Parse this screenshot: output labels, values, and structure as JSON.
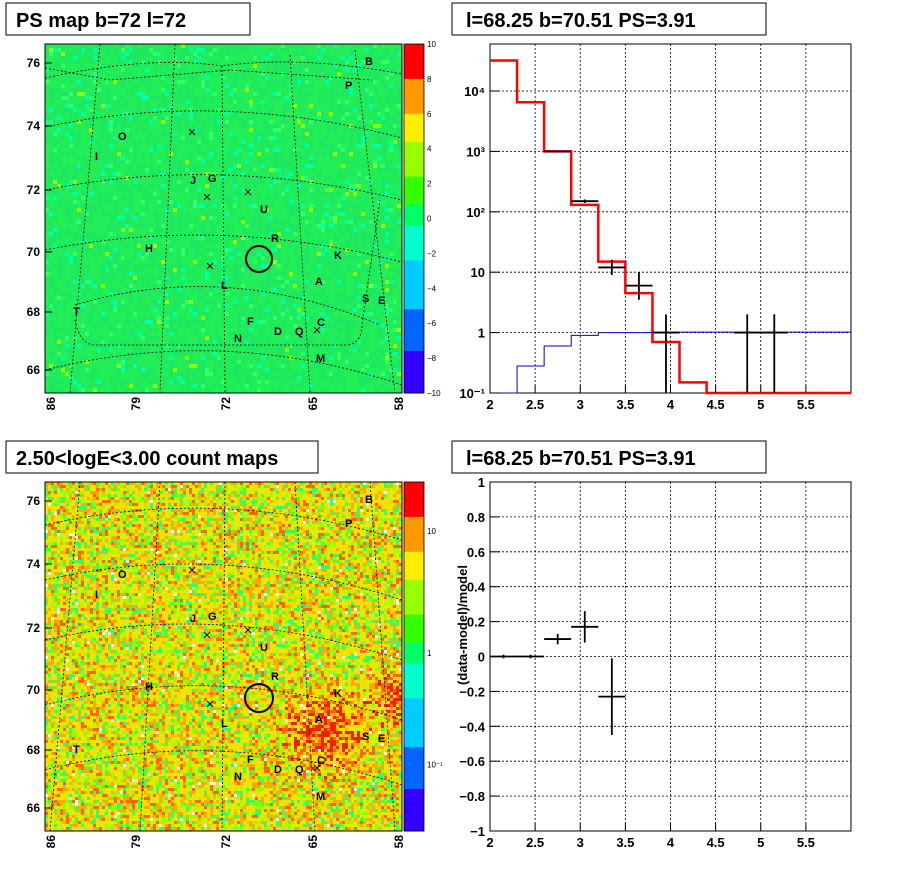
{
  "chart_data": [
    {
      "type": "heatmap",
      "title": "PS map b=72 l=72",
      "x_ticks": [
        "86",
        "79",
        "72",
        "65",
        "58"
      ],
      "y_ticks": [
        "76",
        "74",
        "72",
        "70",
        "68",
        "66"
      ],
      "colorbar_ticks": [
        "10",
        "8",
        "6",
        "4",
        "2",
        "0",
        "−2",
        "−4",
        "−6",
        "−8",
        "−10"
      ],
      "colorbar_range": [
        -10,
        10
      ],
      "sources": [
        "B",
        "P",
        "O",
        "I",
        "J",
        "G",
        "U",
        "H",
        "R",
        "K",
        "L",
        "A",
        "S",
        "E",
        "T",
        "F",
        "D",
        "Q",
        "C",
        "N",
        "M"
      ],
      "circle": {
        "l": 68.25,
        "b": 69.6
      }
    },
    {
      "type": "line",
      "title": "l=68.25 b=70.51 PS=3.91",
      "xlim": [
        2,
        6
      ],
      "x_ticks": [
        "2",
        "2.5",
        "3",
        "3.5",
        "4",
        "4.5",
        "5",
        "5.5"
      ],
      "y_scale": "log",
      "ylim": [
        0.1,
        60000
      ],
      "y_ticks": [
        "10⁻¹",
        "1",
        "10",
        "10²",
        "10³",
        "10⁴"
      ],
      "grid": true,
      "series": [
        {
          "color": "#ff0000",
          "style": "step",
          "edges": [
            2.0,
            2.3,
            2.6,
            2.9,
            3.2,
            3.5,
            3.8,
            4.1,
            4.4,
            4.7,
            5.0,
            5.3,
            6.0
          ],
          "values": [
            32000,
            6500,
            1000,
            130,
            15,
            4.5,
            0.7,
            0.15,
            0.08,
            0.08,
            0.08,
            0.08
          ]
        },
        {
          "color": "#0000cc",
          "style": "step",
          "edges": [
            2.0,
            2.3,
            2.6,
            2.9,
            3.2,
            3.5,
            3.8,
            4.1,
            4.4,
            4.7,
            5.0,
            5.3,
            6.0
          ],
          "values": [
            0.09,
            0.28,
            0.6,
            0.9,
            1.0,
            1.0,
            1.02,
            1.02,
            1.02,
            1.02,
            1.02,
            1.02
          ]
        },
        {
          "color": "#000000",
          "style": "errorbars",
          "points": [
            {
              "x": 2.75,
              "xerr": 0.15,
              "y": 1000,
              "ylo": 960,
              "yhi": 1040
            },
            {
              "x": 3.05,
              "xerr": 0.15,
              "y": 150,
              "ylo": 140,
              "yhi": 160
            },
            {
              "x": 3.35,
              "xerr": 0.15,
              "y": 12,
              "ylo": 9,
              "yhi": 16
            },
            {
              "x": 3.65,
              "xerr": 0.15,
              "y": 6,
              "ylo": 3.5,
              "yhi": 10
            },
            {
              "x": 3.95,
              "xerr": 0.15,
              "y": 1,
              "ylo": 0.1,
              "yhi": 2
            },
            {
              "x": 4.85,
              "xerr": 0.15,
              "y": 1,
              "ylo": 0.1,
              "yhi": 2
            },
            {
              "x": 5.15,
              "xerr": 0.15,
              "y": 1,
              "ylo": 0.1,
              "yhi": 2
            }
          ]
        }
      ]
    },
    {
      "type": "heatmap",
      "title": "2.50<logE<3.00 count maps",
      "x_ticks": [
        "86",
        "79",
        "72",
        "65",
        "58"
      ],
      "y_ticks": [
        "76",
        "74",
        "72",
        "70",
        "68",
        "66"
      ],
      "colorbar_ticks": [
        "10",
        "1",
        "10⁻¹"
      ],
      "colorbar_scale": "log",
      "sources": [
        "B",
        "P",
        "O",
        "I",
        "J",
        "G",
        "U",
        "H",
        "R",
        "K",
        "L",
        "A",
        "S",
        "E",
        "T",
        "F",
        "D",
        "Q",
        "C",
        "N",
        "M"
      ],
      "circle": {
        "l": 68.25,
        "b": 69.6
      }
    },
    {
      "type": "scatter",
      "title": "l=68.25 b=70.51 PS=3.91",
      "ylabel": "(data-model)/model",
      "xlim": [
        2,
        6
      ],
      "ylim": [
        -1,
        1
      ],
      "x_ticks": [
        "2",
        "2.5",
        "3",
        "3.5",
        "4",
        "4.5",
        "5",
        "5.5"
      ],
      "y_ticks": [
        "1",
        "0.8",
        "0.6",
        "0.4",
        "0.2",
        "0",
        "−0.2",
        "−0.4",
        "−0.6",
        "−0.8",
        "−1"
      ],
      "grid": true,
      "points": [
        {
          "x": 2.15,
          "xerr": 0.15,
          "y": 0.0,
          "yerr": 0.01
        },
        {
          "x": 2.45,
          "xerr": 0.15,
          "y": 0.0,
          "yerr": 0.01
        },
        {
          "x": 2.75,
          "xerr": 0.15,
          "y": 0.1,
          "yerr": 0.03
        },
        {
          "x": 3.05,
          "xerr": 0.15,
          "y": 0.17,
          "yerr": 0.09
        },
        {
          "x": 3.35,
          "xerr": 0.15,
          "y": -0.23,
          "yerr": 0.22
        }
      ]
    }
  ]
}
